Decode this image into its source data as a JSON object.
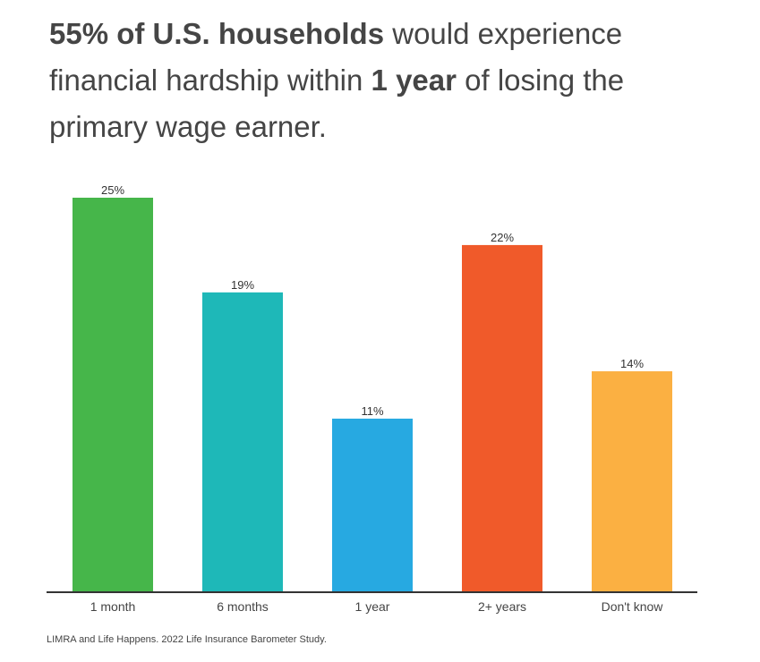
{
  "title": {
    "segments": [
      {
        "text": "55% of U.S. households",
        "bold": true
      },
      {
        "text": " would experience financial hardship within ",
        "bold": false
      },
      {
        "text": "1 year",
        "bold": true
      },
      {
        "text": " of losing the primary wage earner.",
        "bold": false
      }
    ]
  },
  "source": "LIMRA and Life Happens. 2022 Life Insurance Barometer Study.",
  "chart_data": {
    "type": "bar",
    "title": "55% of U.S. households would experience financial hardship within 1 year of losing the primary wage earner.",
    "xlabel": "",
    "ylabel": "",
    "ylim": [
      0,
      25
    ],
    "grid": false,
    "categories": [
      "1 month",
      "6 months",
      "1 year",
      "2+ years",
      "Don't know"
    ],
    "values": [
      25,
      19,
      11,
      22,
      14
    ],
    "value_labels": [
      "25%",
      "19%",
      "11%",
      "22%",
      "14%"
    ],
    "colors": [
      "#46b64a",
      "#1eb8b8",
      "#27a9e1",
      "#f05a2a",
      "#fbb042"
    ]
  }
}
